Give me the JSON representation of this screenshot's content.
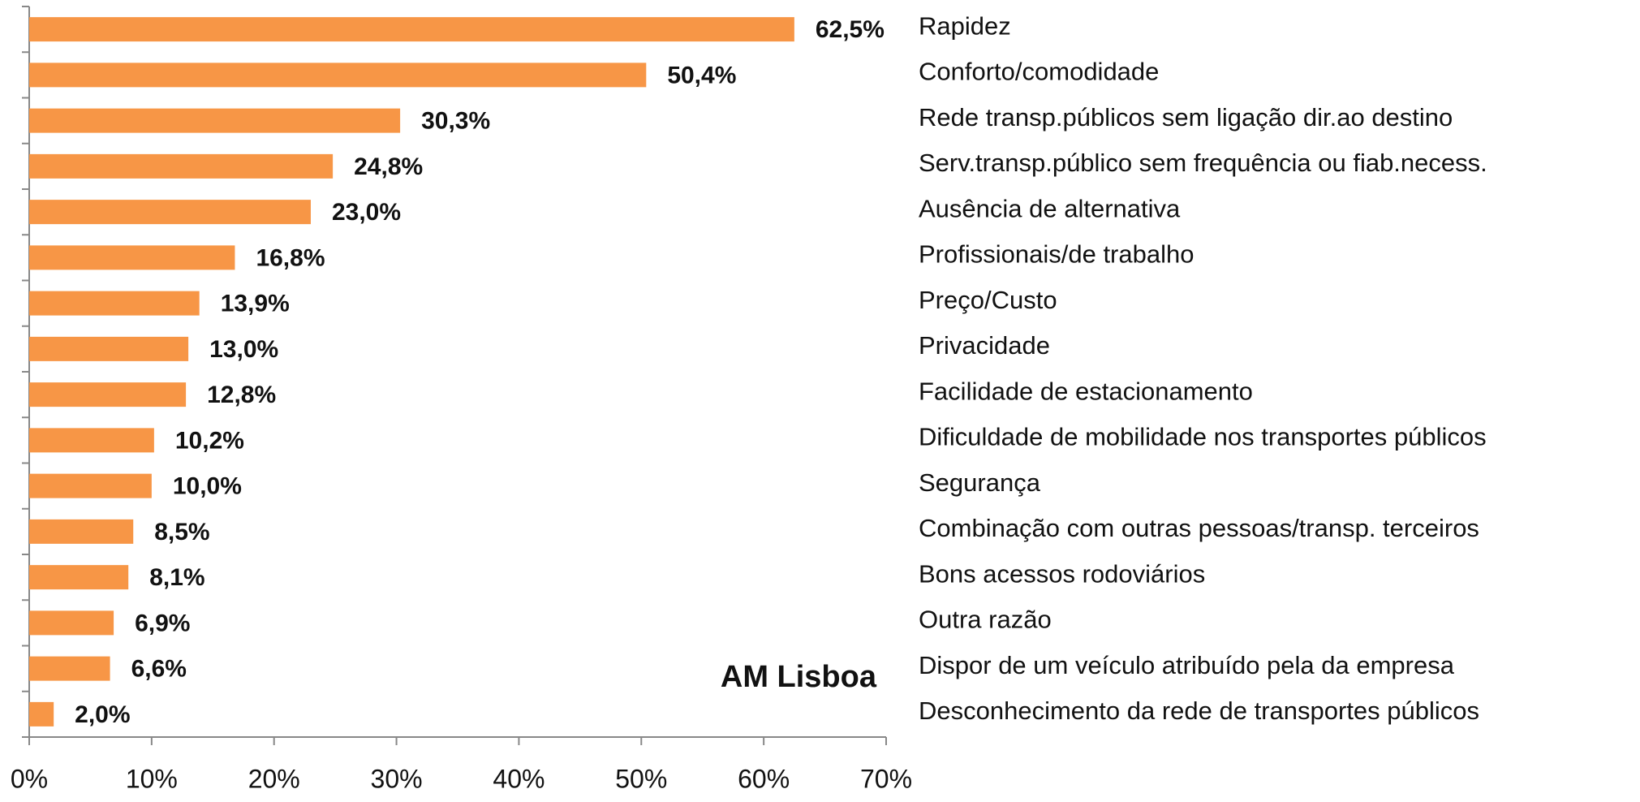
{
  "chart_data": {
    "type": "bar",
    "orientation": "horizontal",
    "annotation": "AM Lisboa",
    "categories": [
      "Rapidez",
      "Conforto/comodidade",
      "Rede transp.públicos sem ligação dir.ao destino",
      "Serv.transp.público sem frequência ou fiab.necess.",
      "Ausência de alternativa",
      "Profissionais/de trabalho",
      "Preço/Custo",
      "Privacidade",
      "Facilidade de estacionamento",
      "Dificuldade de mobilidade nos transportes públicos",
      "Segurança",
      "Combinação com outras pessoas/transp. terceiros",
      "Bons acessos rodoviários",
      "Outra razão",
      "Dispor de um veículo atribuído pela da empresa",
      "Desconhecimento da rede de transportes públicos"
    ],
    "values": [
      62.5,
      50.4,
      30.3,
      24.8,
      23.0,
      16.8,
      13.9,
      13.0,
      12.8,
      10.2,
      10.0,
      8.5,
      8.1,
      6.9,
      6.6,
      2.0
    ],
    "value_labels": [
      "62,5%",
      "50,4%",
      "30,3%",
      "24,8%",
      "23,0%",
      "16,8%",
      "13,9%",
      "13,0%",
      "12,8%",
      "10,2%",
      "10,0%",
      "8,5%",
      "8,1%",
      "6,9%",
      "6,6%",
      "2,0%"
    ],
    "color": "#f79646",
    "xlim": [
      0,
      70
    ],
    "xticks": [
      {
        "value": 0,
        "label": "0%"
      },
      {
        "value": 10,
        "label": "10%"
      },
      {
        "value": 20,
        "label": "20%"
      },
      {
        "value": 30,
        "label": "30%"
      },
      {
        "value": 40,
        "label": "40%"
      },
      {
        "value": 50,
        "label": "50%"
      },
      {
        "value": 60,
        "label": "60%"
      },
      {
        "value": 70,
        "label": "70%"
      }
    ],
    "grid": false
  }
}
